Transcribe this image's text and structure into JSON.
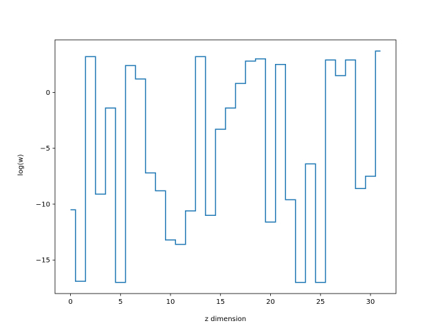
{
  "chart_data": {
    "type": "line",
    "drawstyle": "steps-mid",
    "title": "",
    "xlabel": "z dimension",
    "ylabel": "log(w)",
    "xlim": [
      -1.55,
      32.55
    ],
    "ylim": [
      -18.0,
      4.7
    ],
    "xticks": [
      0,
      5,
      10,
      15,
      20,
      25,
      30
    ],
    "yticks": [
      -15,
      -10,
      -5,
      0
    ],
    "ytick_labels": [
      "−15",
      "−10",
      "−5",
      "0"
    ],
    "grid": false,
    "line_color": "#1f77b4",
    "series": [
      {
        "name": "",
        "x": [
          0,
          1,
          2,
          3,
          4,
          5,
          6,
          7,
          8,
          9,
          10,
          11,
          12,
          13,
          14,
          15,
          16,
          17,
          18,
          19,
          20,
          21,
          22,
          23,
          24,
          25,
          26,
          27,
          28,
          29,
          30,
          31
        ],
        "values": [
          -10.5,
          -16.9,
          3.2,
          -9.1,
          -1.4,
          -17.0,
          2.4,
          1.2,
          -7.2,
          -8.8,
          -13.2,
          -13.6,
          -10.6,
          3.2,
          -11.0,
          -3.3,
          -1.4,
          0.8,
          2.8,
          3.0,
          -11.6,
          2.5,
          -9.6,
          -17.0,
          -6.4,
          -17.0,
          2.9,
          1.5,
          2.9,
          -8.6,
          -7.5,
          3.7
        ]
      }
    ]
  }
}
